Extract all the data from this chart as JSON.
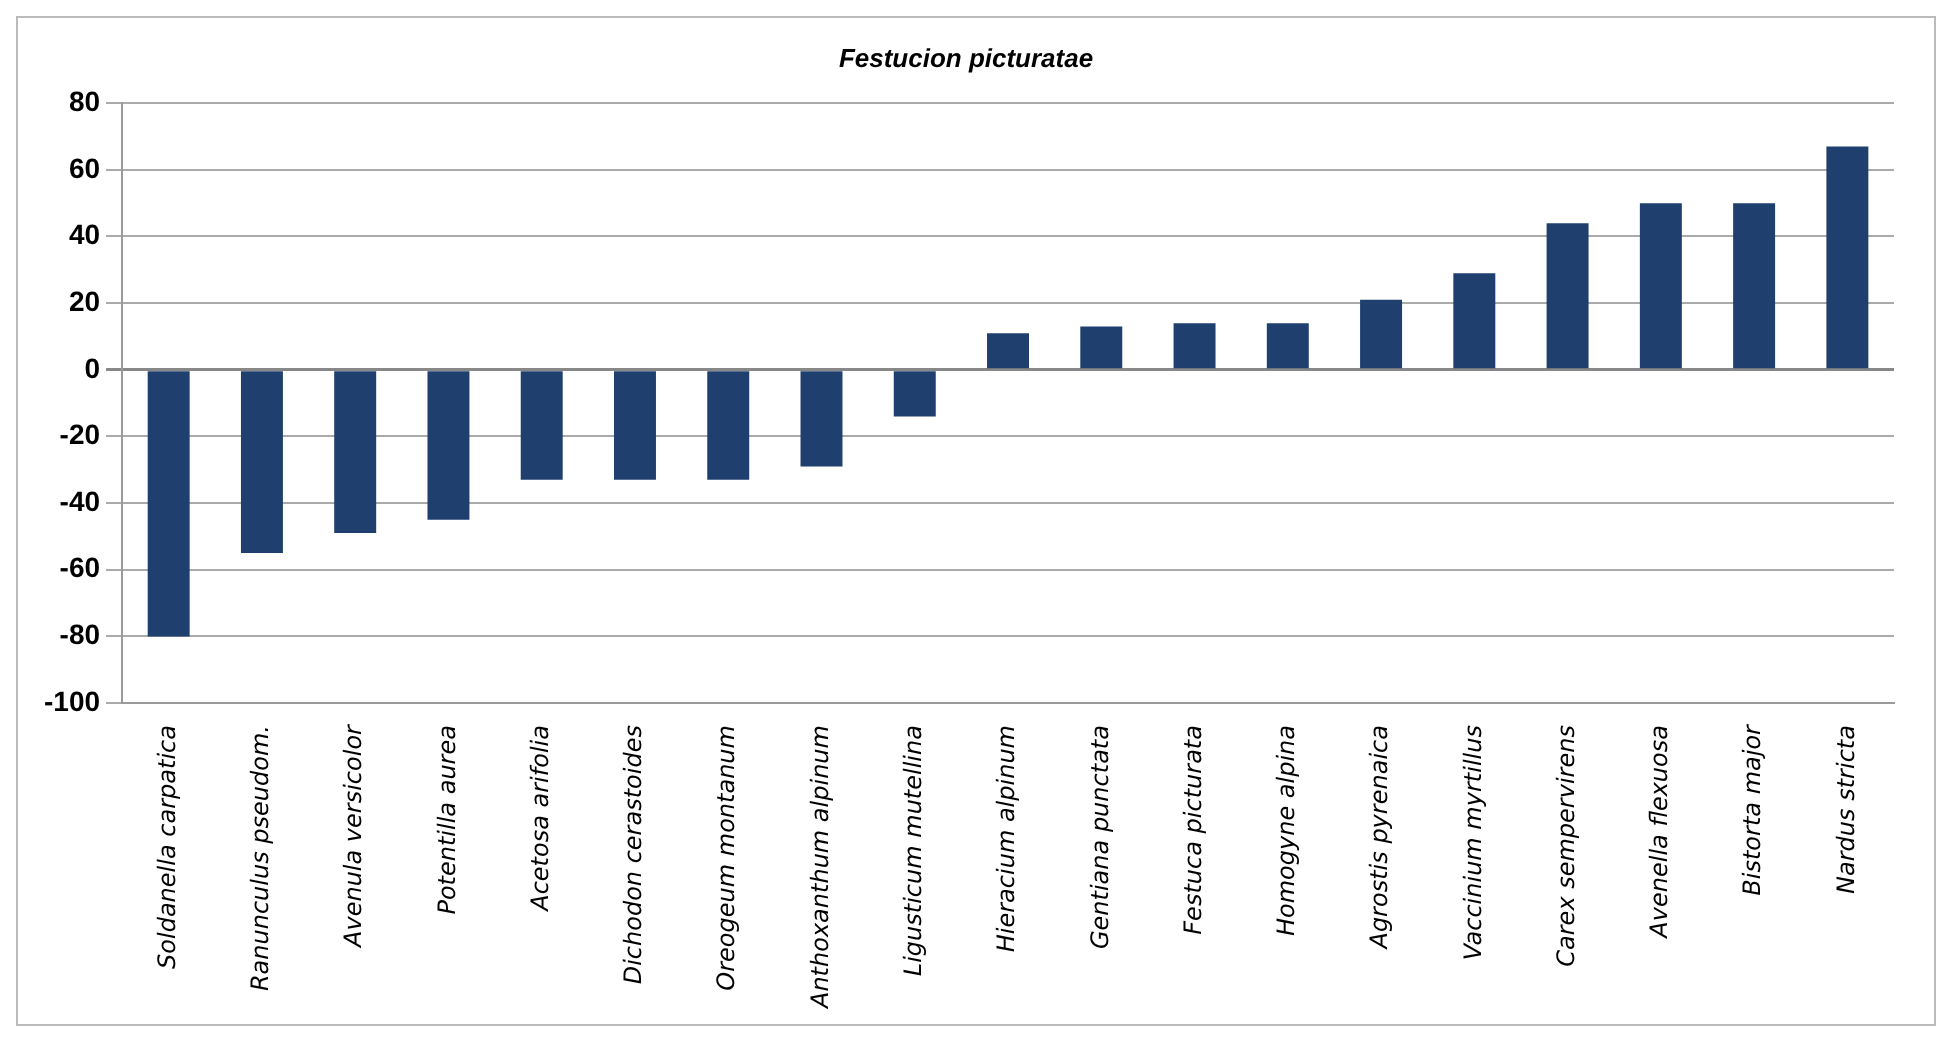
{
  "chart_data": {
    "type": "bar",
    "title": "Festucion picturatae",
    "categories": [
      "Soldanella carpatica",
      "Ranunculus pseudom.",
      "Avenula versicolor",
      "Potentilla aurea",
      "Acetosa arifolia",
      "Dichodon cerastoides",
      "Oreogeum montanum",
      "Anthoxanthum alpinum",
      "Ligusticum mutellina",
      "Hieracium alpinum",
      "Gentiana punctata",
      "Festuca picturata",
      "Homogyne alpina",
      "Agrostis pyrenaica",
      "Vaccinium myrtillus",
      "Carex sempervirens",
      "Avenella flexuosa",
      "Bistorta major",
      "Nardus stricta"
    ],
    "values": [
      -80,
      -55,
      -49,
      -45,
      -33,
      -33,
      -33,
      -29,
      -14,
      11,
      13,
      14,
      14,
      21,
      29,
      44,
      50,
      50,
      67
    ],
    "color": "#1f3f6e",
    "ylim": [
      -100,
      80
    ],
    "yticks": [
      -100,
      -80,
      -60,
      -40,
      -20,
      0,
      20,
      40,
      60,
      80
    ],
    "grid": "y"
  }
}
